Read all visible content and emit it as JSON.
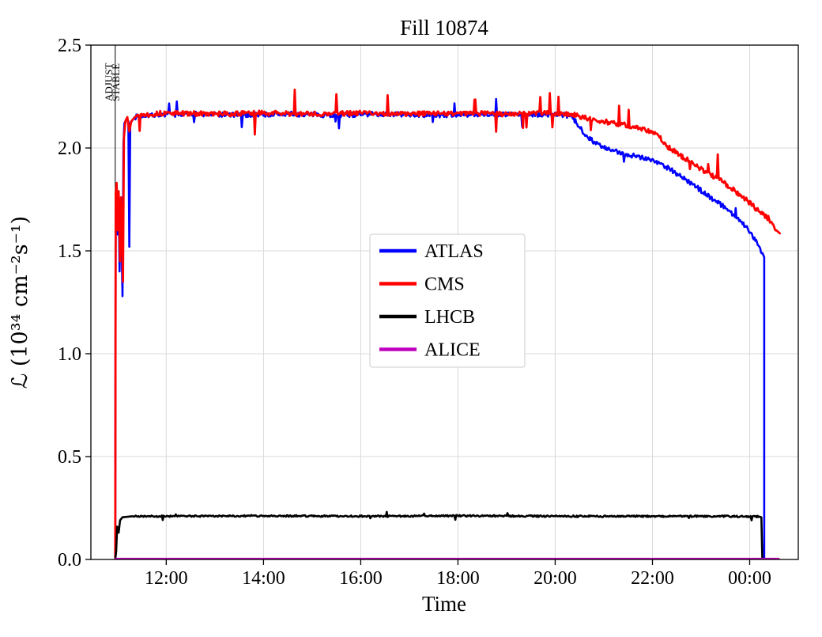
{
  "page": {
    "title": "Fill 10874"
  },
  "chart_data": {
    "type": "line",
    "title": "Fill 10874",
    "xlabel": "Time",
    "ylabel": "ℒ (10³⁴ cm⁻²s⁻¹)",
    "xlim": [
      10.45,
      25.0
    ],
    "ylim": [
      0,
      2.5
    ],
    "grid": true,
    "grid_color": "#d9d9d9",
    "x_ticks": [
      {
        "t": 12,
        "label": "12:00"
      },
      {
        "t": 14,
        "label": "14:00"
      },
      {
        "t": 16,
        "label": "16:00"
      },
      {
        "t": 18,
        "label": "18:00"
      },
      {
        "t": 20,
        "label": "20:00"
      },
      {
        "t": 22,
        "label": "22:00"
      },
      {
        "t": 24,
        "label": "00:00"
      }
    ],
    "y_ticks": [
      {
        "v": 0.0,
        "label": "0.0"
      },
      {
        "v": 0.5,
        "label": "0.5"
      },
      {
        "v": 1.0,
        "label": "1.0"
      },
      {
        "v": 1.5,
        "label": "1.5"
      },
      {
        "v": 2.0,
        "label": "2.0"
      },
      {
        "v": 2.5,
        "label": "2.5"
      }
    ],
    "annotations": [
      {
        "type": "vline",
        "t": 10.95,
        "labels": [
          "ADJUST",
          "STABLE"
        ]
      }
    ],
    "legend": {
      "position": "center",
      "entries": [
        "ATLAS",
        "CMS",
        "LHCB",
        "ALICE"
      ]
    },
    "series": [
      {
        "name": "ATLAS",
        "color": "#0000ff",
        "width": 2.6,
        "noise": 0.012,
        "spike": 0.05,
        "spike_p": 0.02,
        "noise_range": [
          11.35,
          24.28
        ],
        "points": [
          [
            10.95,
            0
          ],
          [
            10.96,
            1.72
          ],
          [
            10.98,
            1.8
          ],
          [
            11.0,
            1.58
          ],
          [
            11.02,
            1.76
          ],
          [
            11.04,
            1.4
          ],
          [
            11.06,
            1.74
          ],
          [
            11.08,
            1.55
          ],
          [
            11.1,
            1.28
          ],
          [
            11.12,
            2.02
          ],
          [
            11.14,
            2.12
          ],
          [
            11.18,
            2.14
          ],
          [
            11.22,
            2.13
          ],
          [
            11.24,
            1.52
          ],
          [
            11.26,
            2.12
          ],
          [
            11.35,
            2.15
          ],
          [
            11.6,
            2.16
          ],
          [
            12.5,
            2.165
          ],
          [
            13.5,
            2.16
          ],
          [
            14.5,
            2.165
          ],
          [
            15.5,
            2.16
          ],
          [
            16.5,
            2.165
          ],
          [
            17.5,
            2.16
          ],
          [
            18.5,
            2.165
          ],
          [
            19.5,
            2.16
          ],
          [
            20.1,
            2.165
          ],
          [
            20.35,
            2.15
          ],
          [
            20.5,
            2.1
          ],
          [
            20.65,
            2.06
          ],
          [
            20.8,
            2.03
          ],
          [
            21.0,
            2.0
          ],
          [
            21.2,
            1.985
          ],
          [
            21.45,
            1.97
          ],
          [
            21.7,
            1.96
          ],
          [
            21.95,
            1.945
          ],
          [
            22.15,
            1.925
          ],
          [
            22.35,
            1.9
          ],
          [
            22.6,
            1.86
          ],
          [
            22.9,
            1.81
          ],
          [
            23.2,
            1.76
          ],
          [
            23.5,
            1.71
          ],
          [
            23.8,
            1.65
          ],
          [
            24.05,
            1.58
          ],
          [
            24.2,
            1.52
          ],
          [
            24.28,
            1.48
          ],
          [
            24.3,
            1.47
          ],
          [
            24.3,
            0
          ]
        ]
      },
      {
        "name": "CMS",
        "color": "#ff0000",
        "width": 2.8,
        "noise": 0.012,
        "spike": 0.07,
        "spike_p": 0.025,
        "noise_range": [
          11.4,
          24.55
        ],
        "points": [
          [
            10.95,
            0
          ],
          [
            10.96,
            1.78
          ],
          [
            10.98,
            1.83
          ],
          [
            11.0,
            1.6
          ],
          [
            11.02,
            1.79
          ],
          [
            11.05,
            1.45
          ],
          [
            11.07,
            1.76
          ],
          [
            11.09,
            1.58
          ],
          [
            11.11,
            1.35
          ],
          [
            11.13,
            2.05
          ],
          [
            11.16,
            2.13
          ],
          [
            11.2,
            2.15
          ],
          [
            11.24,
            2.08
          ],
          [
            11.28,
            2.13
          ],
          [
            11.4,
            2.16
          ],
          [
            12.0,
            2.17
          ],
          [
            13.0,
            2.165
          ],
          [
            14.0,
            2.17
          ],
          [
            15.0,
            2.165
          ],
          [
            16.0,
            2.17
          ],
          [
            17.0,
            2.165
          ],
          [
            18.0,
            2.17
          ],
          [
            19.0,
            2.165
          ],
          [
            19.8,
            2.17
          ],
          [
            20.3,
            2.165
          ],
          [
            20.5,
            2.155
          ],
          [
            20.7,
            2.14
          ],
          [
            20.9,
            2.13
          ],
          [
            21.1,
            2.125
          ],
          [
            21.35,
            2.115
          ],
          [
            21.6,
            2.105
          ],
          [
            21.85,
            2.09
          ],
          [
            22.0,
            2.08
          ],
          [
            22.15,
            2.05
          ],
          [
            22.3,
            2.01
          ],
          [
            22.5,
            1.975
          ],
          [
            22.7,
            1.945
          ],
          [
            22.95,
            1.905
          ],
          [
            23.2,
            1.87
          ],
          [
            23.45,
            1.835
          ],
          [
            23.7,
            1.79
          ],
          [
            23.95,
            1.745
          ],
          [
            24.2,
            1.69
          ],
          [
            24.4,
            1.655
          ],
          [
            24.55,
            1.6
          ],
          [
            24.62,
            1.585
          ]
        ]
      },
      {
        "name": "LHCB",
        "color": "#000000",
        "width": 2.6,
        "noise": 0.004,
        "spike": 0.012,
        "spike_p": 0.012,
        "noise_range": [
          11.3,
          24.2
        ],
        "points": [
          [
            10.95,
            0
          ],
          [
            10.97,
            0.04
          ],
          [
            10.99,
            0.16
          ],
          [
            11.02,
            0.13
          ],
          [
            11.05,
            0.19
          ],
          [
            11.1,
            0.205
          ],
          [
            11.3,
            0.21
          ],
          [
            12,
            0.21
          ],
          [
            14,
            0.212
          ],
          [
            16,
            0.21
          ],
          [
            18,
            0.212
          ],
          [
            20,
            0.21
          ],
          [
            22,
            0.21
          ],
          [
            23.5,
            0.21
          ],
          [
            24.2,
            0.208
          ],
          [
            24.24,
            0.205
          ],
          [
            24.26,
            0
          ]
        ]
      },
      {
        "name": "ALICE",
        "color": "#bf00bf",
        "width": 2.2,
        "noise": 0,
        "points": [
          [
            10.95,
            0.004
          ],
          [
            24.6,
            0.004
          ]
        ]
      }
    ]
  }
}
